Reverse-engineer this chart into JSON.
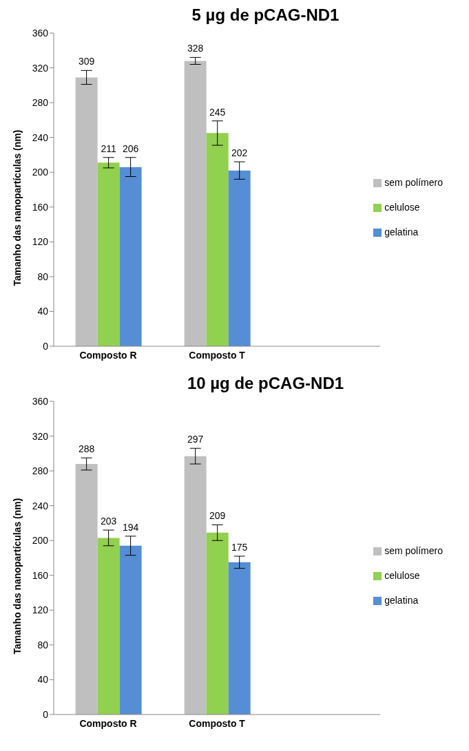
{
  "chart_data": [
    {
      "type": "bar",
      "title": "5 µg de pCAG-ND1",
      "ylabel": "Tamanho das nanopartículas (nm)",
      "categories": [
        "Composto R",
        "Composto T",
        null
      ],
      "ylim": [
        0,
        360
      ],
      "yticks": [
        0,
        40,
        80,
        120,
        160,
        200,
        240,
        280,
        320,
        360
      ],
      "grid": false,
      "legend": "right",
      "data_labels": true,
      "series": [
        {
          "name": "sem polímero",
          "color": "#bfbfbf",
          "values": [
            309,
            328,
            null
          ],
          "errors": [
            8,
            4,
            null
          ]
        },
        {
          "name": "celulose",
          "color": "#92d050",
          "values": [
            211,
            245,
            null
          ],
          "errors": [
            6,
            14,
            null
          ]
        },
        {
          "name": "gelatina",
          "color": "#558ed5",
          "values": [
            206,
            202,
            null
          ],
          "errors": [
            11,
            10,
            null
          ]
        }
      ]
    },
    {
      "type": "bar",
      "title": "10 µg de pCAG-ND1",
      "ylabel": "Tamanho das nanopartículas (nm)",
      "categories": [
        "Composto R",
        "Composto T",
        null
      ],
      "ylim": [
        0,
        360
      ],
      "yticks": [
        0,
        40,
        80,
        120,
        160,
        200,
        240,
        280,
        320,
        360
      ],
      "grid": false,
      "legend": "right",
      "data_labels": true,
      "series": [
        {
          "name": "sem polímero",
          "color": "#bfbfbf",
          "values": [
            288,
            297,
            null
          ],
          "errors": [
            7,
            9,
            null
          ]
        },
        {
          "name": "celulose",
          "color": "#92d050",
          "values": [
            203,
            209,
            null
          ],
          "errors": [
            9,
            9,
            null
          ]
        },
        {
          "name": "gelatina",
          "color": "#558ed5",
          "values": [
            194,
            175,
            null
          ],
          "errors": [
            11,
            7,
            null
          ]
        }
      ]
    }
  ]
}
